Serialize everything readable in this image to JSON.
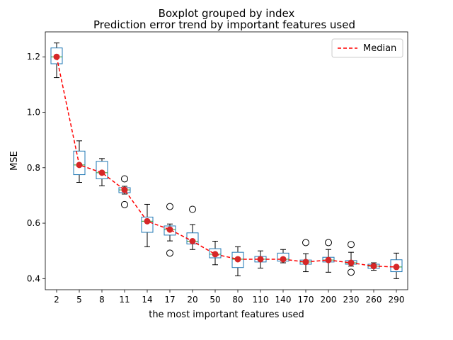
{
  "chart_data": {
    "type": "boxplot",
    "suptitle": "Boxplot grouped by index",
    "title": "Prediction error trend by important features used",
    "xlabel": "the most important features used",
    "ylabel": "MSE",
    "ylim": [
      0.36,
      1.29
    ],
    "yticks": [
      0.4,
      0.6,
      0.8,
      1.0,
      1.2
    ],
    "ytick_labels": [
      "0.4",
      "0.6",
      "0.8",
      "1.0",
      "1.2"
    ],
    "categories": [
      "2",
      "5",
      "8",
      "11",
      "14",
      "17",
      "20",
      "50",
      "80",
      "110",
      "140",
      "170",
      "200",
      "230",
      "260",
      "290"
    ],
    "boxes": [
      {
        "whislo": 1.125,
        "q1": 1.175,
        "med": 1.2,
        "q3": 1.232,
        "whishi": 1.25,
        "fliers": []
      },
      {
        "whislo": 0.747,
        "q1": 0.775,
        "med": 0.81,
        "q3": 0.86,
        "whishi": 0.897,
        "fliers": []
      },
      {
        "whislo": 0.735,
        "q1": 0.76,
        "med": 0.782,
        "q3": 0.823,
        "whishi": 0.833,
        "fliers": []
      },
      {
        "whislo": 0.705,
        "q1": 0.71,
        "med": 0.72,
        "q3": 0.728,
        "whishi": 0.733,
        "fliers": [
          0.76,
          0.667
        ]
      },
      {
        "whislo": 0.515,
        "q1": 0.567,
        "med": 0.607,
        "q3": 0.622,
        "whishi": 0.668,
        "fliers": []
      },
      {
        "whislo": 0.536,
        "q1": 0.557,
        "med": 0.577,
        "q3": 0.59,
        "whishi": 0.597,
        "fliers": [
          0.66,
          0.492
        ]
      },
      {
        "whislo": 0.505,
        "q1": 0.525,
        "med": 0.535,
        "q3": 0.565,
        "whishi": 0.595,
        "fliers": [
          0.65
        ]
      },
      {
        "whislo": 0.45,
        "q1": 0.475,
        "med": 0.488,
        "q3": 0.508,
        "whishi": 0.535,
        "fliers": []
      },
      {
        "whislo": 0.41,
        "q1": 0.44,
        "med": 0.47,
        "q3": 0.495,
        "whishi": 0.515,
        "fliers": []
      },
      {
        "whislo": 0.438,
        "q1": 0.46,
        "med": 0.47,
        "q3": 0.48,
        "whishi": 0.5,
        "fliers": []
      },
      {
        "whislo": 0.457,
        "q1": 0.463,
        "med": 0.47,
        "q3": 0.492,
        "whishi": 0.505,
        "fliers": []
      },
      {
        "whislo": 0.425,
        "q1": 0.452,
        "med": 0.46,
        "q3": 0.467,
        "whishi": 0.49,
        "fliers": [
          0.53
        ]
      },
      {
        "whislo": 0.423,
        "q1": 0.46,
        "med": 0.467,
        "q3": 0.477,
        "whishi": 0.505,
        "fliers": [
          0.53
        ]
      },
      {
        "whislo": 0.445,
        "q1": 0.452,
        "med": 0.457,
        "q3": 0.465,
        "whishi": 0.495,
        "fliers": [
          0.523,
          0.423
        ]
      },
      {
        "whislo": 0.43,
        "q1": 0.437,
        "med": 0.445,
        "q3": 0.452,
        "whishi": 0.457,
        "fliers": []
      },
      {
        "whislo": 0.4,
        "q1": 0.425,
        "med": 0.442,
        "q3": 0.468,
        "whishi": 0.492,
        "fliers": []
      }
    ],
    "median_line": {
      "name": "Median",
      "values": [
        1.2,
        0.81,
        0.782,
        0.72,
        0.607,
        0.577,
        0.535,
        0.488,
        0.47,
        0.47,
        0.47,
        0.46,
        0.467,
        0.457,
        0.445,
        0.442
      ]
    },
    "legend_position": "top-right",
    "grid": false,
    "colors": {
      "box": "#1f77b4",
      "median_line": "#ff0000",
      "median_marker": "#d62728",
      "whisker": "#000000",
      "flier": "#000000"
    }
  }
}
